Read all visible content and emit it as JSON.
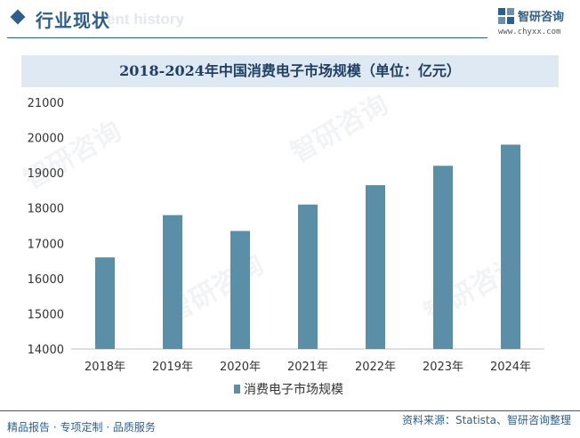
{
  "header": {
    "section_title": "行业现状",
    "watermark_text": "ent history",
    "logo_name": "智研咨询",
    "logo_url": "www.chyxx.com"
  },
  "colors": {
    "bar": "#5b8fa8",
    "brand": "#2e5f8a",
    "title_band": "#dfe9f3"
  },
  "watermark": "智研咨询",
  "chart_data": {
    "type": "bar",
    "title": "2018-2024年中国消费电子市场规模（单位：亿元）",
    "categories": [
      "2018年",
      "2019年",
      "2020年",
      "2021年",
      "2022年",
      "2023年",
      "2024年"
    ],
    "series": [
      {
        "name": "消费电子市场规模",
        "values": [
          16600,
          17800,
          17350,
          18100,
          18650,
          19200,
          19800
        ]
      }
    ],
    "ylim": [
      14000,
      21000
    ],
    "yticks": [
      14000,
      15000,
      16000,
      17000,
      18000,
      19000,
      20000,
      21000
    ],
    "grid": false,
    "legend": "bottom-center"
  },
  "footer": {
    "left": "精品报告 · 专项定制 · 品质服务",
    "right": "资料来源：Statista、智研咨询整理"
  }
}
